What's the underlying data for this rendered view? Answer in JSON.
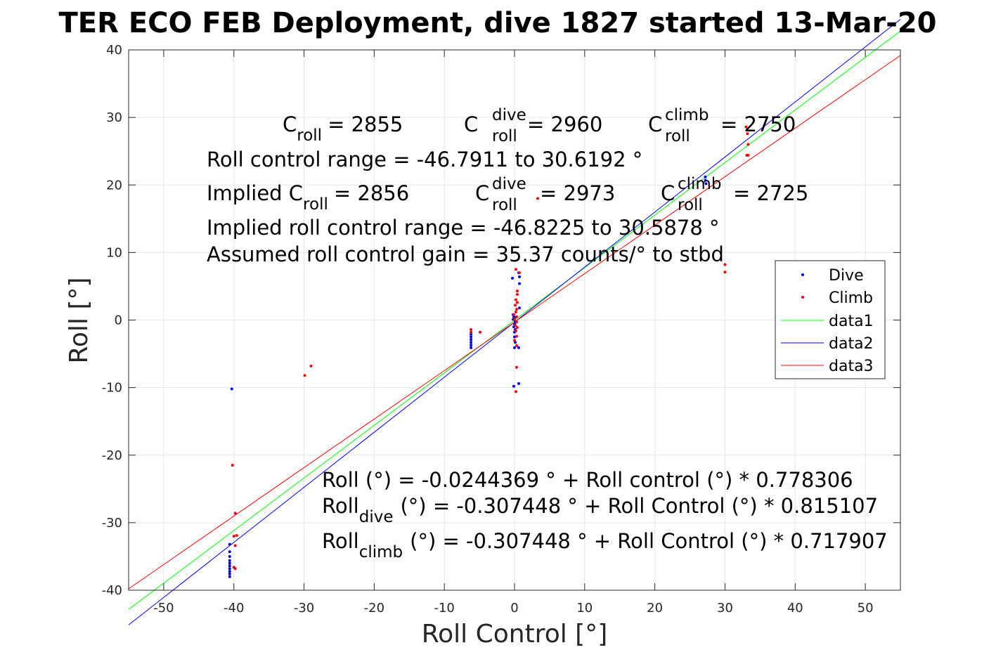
{
  "chart_data": {
    "type": "scatter",
    "title": "TER ECO FEB Deployment, dive 1827 started 13-Mar-20",
    "xlabel": "Roll Control [°]",
    "ylabel": "Roll [°]",
    "xlim": [
      -55,
      55
    ],
    "ylim": [
      -40,
      40
    ],
    "xticks": [
      -50,
      -40,
      -30,
      -20,
      -10,
      0,
      10,
      20,
      30,
      40,
      50
    ],
    "yticks": [
      -40,
      -30,
      -20,
      -10,
      0,
      10,
      20,
      30,
      40
    ],
    "grid": true,
    "legend_position": "right",
    "series": [
      {
        "name": "Dive",
        "kind": "points",
        "color": "#0000ff",
        "points": [
          [
            -40.3,
            -10.2
          ],
          [
            -40.6,
            -33.2
          ],
          [
            -40.6,
            -34.3
          ],
          [
            -40.6,
            -35.0
          ],
          [
            -40.6,
            -35.6
          ],
          [
            -40.6,
            -36.0
          ],
          [
            -40.6,
            -36.4
          ],
          [
            -40.6,
            -36.8
          ],
          [
            -40.6,
            -37.2
          ],
          [
            -40.6,
            -37.6
          ],
          [
            -40.6,
            -38.0
          ],
          [
            -6.2,
            -2.1
          ],
          [
            -6.2,
            -2.5
          ],
          [
            -6.2,
            -2.9
          ],
          [
            -6.2,
            -3.3
          ],
          [
            -6.2,
            -3.7
          ],
          [
            -6.2,
            -4.1
          ],
          [
            -0.3,
            6.2
          ],
          [
            0.6,
            7.0
          ],
          [
            0.7,
            6.4
          ],
          [
            0.7,
            5.4
          ],
          [
            0.7,
            1.8
          ],
          [
            -0.2,
            0.8
          ],
          [
            -0.1,
            0.5
          ],
          [
            0.0,
            0.3
          ],
          [
            -0.2,
            0.1
          ],
          [
            0.1,
            -0.2
          ],
          [
            0.0,
            -0.6
          ],
          [
            -0.1,
            -1.0
          ],
          [
            0.1,
            -1.4
          ],
          [
            0.0,
            -1.8
          ],
          [
            0.0,
            -2.5
          ],
          [
            0.1,
            -3.3
          ],
          [
            0.0,
            -4.1
          ],
          [
            0.6,
            -4.1
          ],
          [
            -0.1,
            -9.8
          ],
          [
            0.6,
            -9.4
          ],
          [
            27.2,
            21.2
          ],
          [
            27.2,
            20.7
          ],
          [
            27.3,
            20.2
          ]
        ]
      },
      {
        "name": "Climb",
        "kind": "points",
        "color": "#ff0000",
        "points": [
          [
            -40.2,
            -21.5
          ],
          [
            -39.8,
            -28.6
          ],
          [
            -40.0,
            -32.0
          ],
          [
            -39.6,
            -31.9
          ],
          [
            -39.8,
            -33.4
          ],
          [
            -40.0,
            -36.6
          ],
          [
            -39.8,
            -36.8
          ],
          [
            -29.9,
            -8.2
          ],
          [
            -29.0,
            -6.8
          ],
          [
            -6.2,
            -1.4
          ],
          [
            -6.2,
            -1.8
          ],
          [
            -4.9,
            -1.8
          ],
          [
            0.2,
            7.5
          ],
          [
            0.7,
            7.0
          ],
          [
            0.4,
            4.3
          ],
          [
            0.4,
            3.8
          ],
          [
            0.2,
            3.0
          ],
          [
            0.4,
            2.6
          ],
          [
            0.1,
            2.2
          ],
          [
            0.3,
            1.6
          ],
          [
            0.2,
            1.2
          ],
          [
            -0.1,
            0.8
          ],
          [
            0.3,
            0.5
          ],
          [
            0.0,
            0.1
          ],
          [
            0.3,
            -0.3
          ],
          [
            0.1,
            -0.8
          ],
          [
            0.4,
            -1.1
          ],
          [
            0.2,
            -1.6
          ],
          [
            0.3,
            -2.4
          ],
          [
            0.0,
            -3.0
          ],
          [
            0.3,
            -3.8
          ],
          [
            0.3,
            -7.0
          ],
          [
            0.2,
            -10.6
          ],
          [
            3.3,
            18.0
          ],
          [
            30.0,
            8.2
          ],
          [
            30.0,
            7.1
          ],
          [
            33.0,
            28.6
          ],
          [
            33.2,
            27.6
          ],
          [
            33.3,
            26.0
          ],
          [
            33.1,
            24.4
          ],
          [
            33.3,
            24.4
          ]
        ]
      },
      {
        "name": "data1",
        "kind": "line",
        "color": "#00ff00",
        "x": [
          -55,
          55
        ],
        "y": [
          -42.84,
          42.79
        ]
      },
      {
        "name": "data2",
        "kind": "line",
        "color": "#0000ff",
        "x": [
          -55,
          55
        ],
        "y": [
          -45.14,
          44.52
        ]
      },
      {
        "name": "data3",
        "kind": "line",
        "color": "#ff0000",
        "x": [
          -55,
          55
        ],
        "y": [
          -39.79,
          39.18
        ]
      }
    ]
  },
  "annotations": {
    "c_roll": "= 2855",
    "c_roll_dive": "= 2960",
    "c_roll_climb": "= 2750",
    "roll_control_range": "Roll control range = -46.7911 to 30.6192 °",
    "implied_prefix": "Implied C",
    "implied_c_roll": "= 2856",
    "implied_c_roll_dive": "= 2973",
    "implied_c_roll_climb": "= 2725",
    "implied_range": "Implied roll control range = -46.8225 to 30.5878 °",
    "gain": "Assumed roll control gain = 35.37 counts/° to stbd",
    "fit_all": "Roll (°) = -0.0244369 ° + Roll control (°) * 0.778306",
    "fit_dive": "(°) = -0.307448 ° + Roll Control (°) * 0.815107",
    "fit_climb": "(°) = -0.307448 ° + Roll Control (°) * 0.717907",
    "sym_C": "C",
    "sym_roll": "roll",
    "sym_dive": "dive",
    "sym_climb": "climb",
    "sym_Roll": "Roll"
  }
}
